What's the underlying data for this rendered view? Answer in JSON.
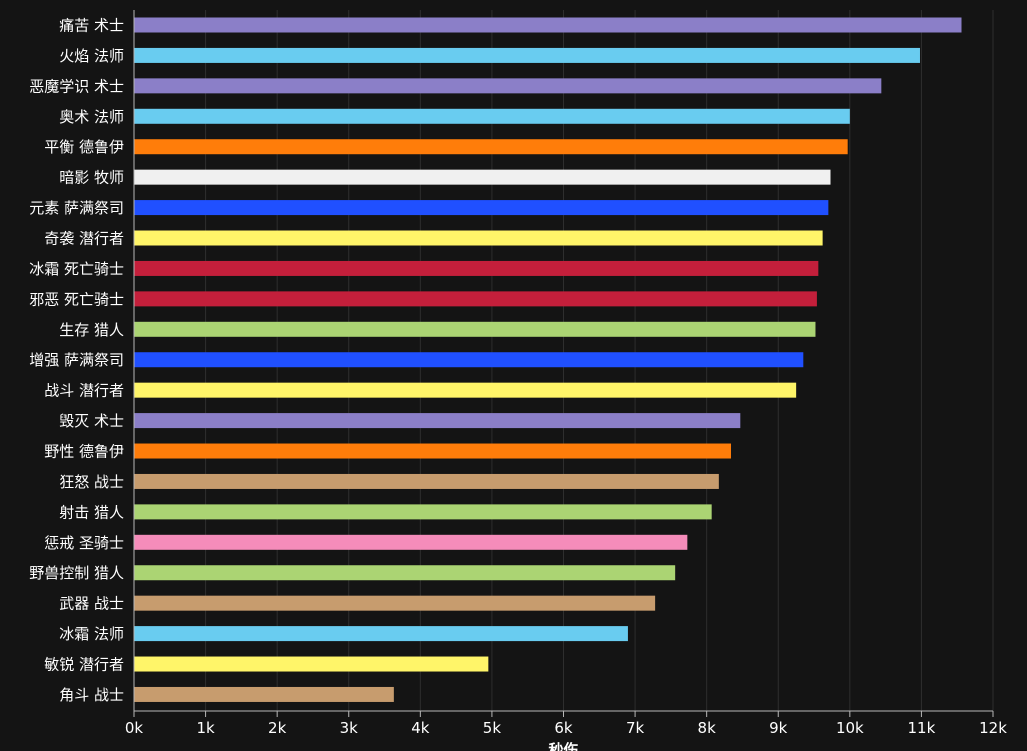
{
  "chart_data": {
    "type": "bar",
    "orientation": "horizontal",
    "xlabel": "秒伤",
    "xlim": [
      0,
      12000
    ],
    "x_ticks": [
      {
        "value": 0,
        "label": "0k"
      },
      {
        "value": 1000,
        "label": "1k"
      },
      {
        "value": 2000,
        "label": "2k"
      },
      {
        "value": 3000,
        "label": "3k"
      },
      {
        "value": 4000,
        "label": "4k"
      },
      {
        "value": 5000,
        "label": "5k"
      },
      {
        "value": 6000,
        "label": "6k"
      },
      {
        "value": 7000,
        "label": "7k"
      },
      {
        "value": 8000,
        "label": "8k"
      },
      {
        "value": 9000,
        "label": "9k"
      },
      {
        "value": 10000,
        "label": "10k"
      },
      {
        "value": 11000,
        "label": "11k"
      },
      {
        "value": 12000,
        "label": "12k"
      }
    ],
    "grid": true,
    "legend": "none",
    "bars": [
      {
        "label": "痛苦 术士",
        "value": 11560,
        "color": "#8b7fc8"
      },
      {
        "label": "火焰 法师",
        "value": 10980,
        "color": "#69ccf0"
      },
      {
        "label": "恶魔学识 术士",
        "value": 10440,
        "color": "#8b7fc8"
      },
      {
        "label": "奥术 法师",
        "value": 10000,
        "color": "#69ccf0"
      },
      {
        "label": "平衡 德鲁伊",
        "value": 9970,
        "color": "#ff7d0a"
      },
      {
        "label": "暗影 牧师",
        "value": 9730,
        "color": "#f0f0f0"
      },
      {
        "label": "元素 萨满祭司",
        "value": 9700,
        "color": "#2050ff"
      },
      {
        "label": "奇袭 潜行者",
        "value": 9620,
        "color": "#fff569"
      },
      {
        "label": "冰霜 死亡骑士",
        "value": 9560,
        "color": "#c41f3b"
      },
      {
        "label": "邪恶 死亡骑士",
        "value": 9540,
        "color": "#c41f3b"
      },
      {
        "label": "生存 猎人",
        "value": 9520,
        "color": "#abd473"
      },
      {
        "label": "增强 萨满祭司",
        "value": 9350,
        "color": "#2050ff"
      },
      {
        "label": "战斗 潜行者",
        "value": 9250,
        "color": "#fff569"
      },
      {
        "label": "毁灭 术士",
        "value": 8470,
        "color": "#8b7fc8"
      },
      {
        "label": "野性 德鲁伊",
        "value": 8340,
        "color": "#ff7d0a"
      },
      {
        "label": "狂怒 战士",
        "value": 8170,
        "color": "#c79c6e"
      },
      {
        "label": "射击 猎人",
        "value": 8070,
        "color": "#abd473"
      },
      {
        "label": "惩戒 圣骑士",
        "value": 7730,
        "color": "#f58cba"
      },
      {
        "label": "野兽控制 猎人",
        "value": 7560,
        "color": "#abd473"
      },
      {
        "label": "武器 战士",
        "value": 7280,
        "color": "#c79c6e"
      },
      {
        "label": "冰霜 法师",
        "value": 6900,
        "color": "#69ccf0"
      },
      {
        "label": "敏锐 潜行者",
        "value": 4950,
        "color": "#fff569"
      },
      {
        "label": "角斗 战士",
        "value": 3630,
        "color": "#c79c6e"
      }
    ]
  }
}
